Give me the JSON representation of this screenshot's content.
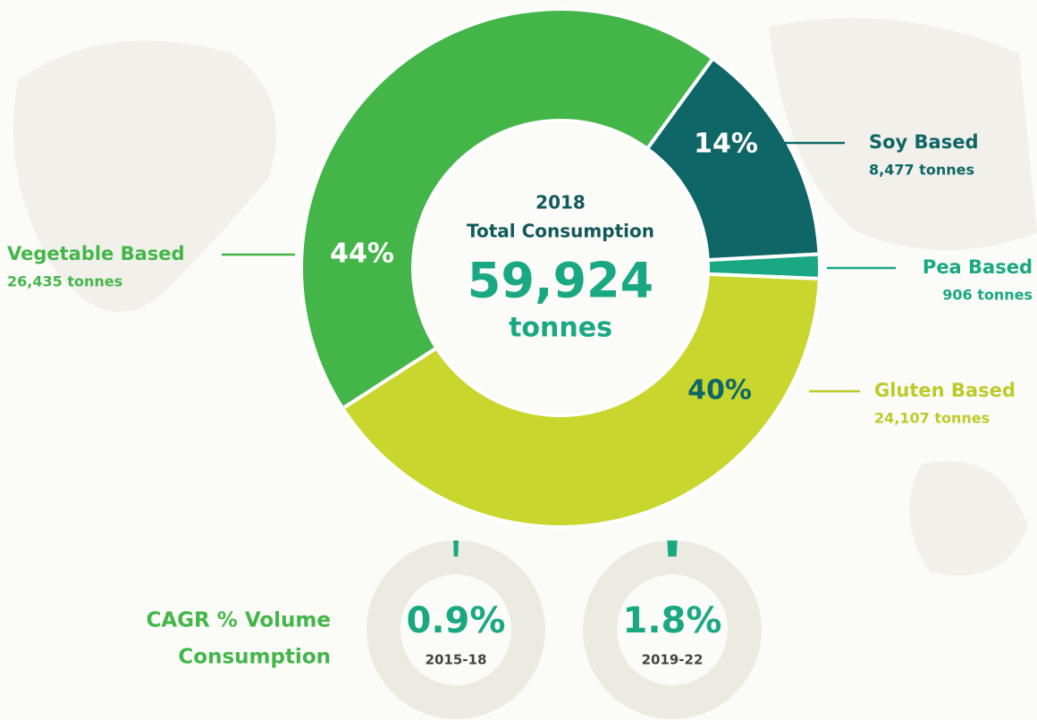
{
  "chart_data": [
    {
      "type": "donut",
      "categories": [
        "Soy Based",
        "Pea Based",
        "Gluten Based",
        "Vegetable Based"
      ],
      "values": [
        8477,
        906,
        24107,
        26435
      ],
      "value_labels": [
        "8,477 tonnes",
        "906 tonnes",
        "24,107 tonnes",
        "26,435 tonnes"
      ],
      "percent_labels": [
        "14%",
        null,
        "40%",
        "44%"
      ],
      "colors": [
        "#0e6766",
        "#1aa882",
        "#c8d62e",
        "#44b649"
      ],
      "center_title": [
        "2018",
        "Total Consumption"
      ],
      "center_value": "59,924",
      "center_unit": "tonnes"
    },
    {
      "type": "ring",
      "title": [
        "CAGR % Volume",
        "Consumption"
      ],
      "categories": [
        "2015-18",
        "2019-22"
      ],
      "values": [
        0.9,
        1.8
      ],
      "value_labels": [
        "0.9%",
        "1.8%"
      ],
      "color": "#1aa882",
      "track_color": "#ecebe2"
    }
  ]
}
